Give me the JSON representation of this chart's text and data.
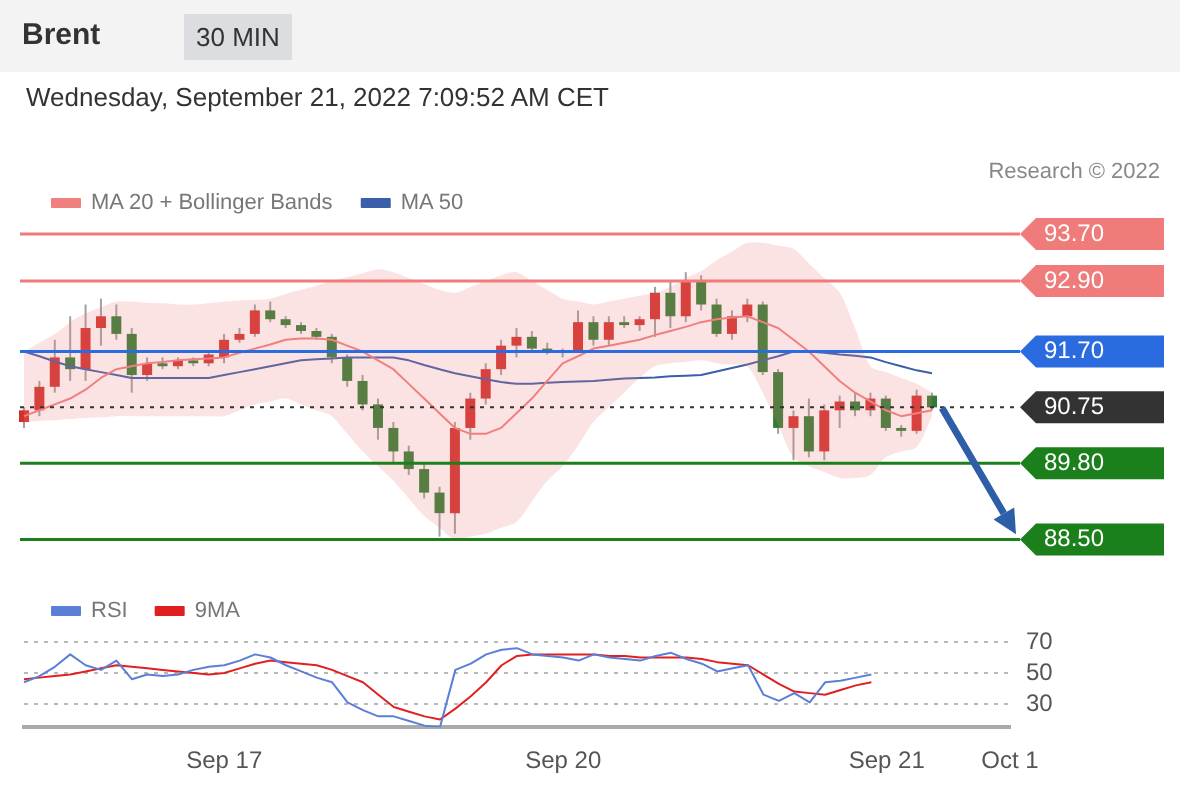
{
  "chart_data": [
    {
      "type": "candlestick",
      "title": "Brent",
      "subtitle": "Wednesday, September 21, 2022 7:09:52 AM CET",
      "annotations": [
        "30 MIN",
        "Research © 2022"
      ],
      "categories": [
        null,
        null,
        null,
        null,
        null,
        null,
        null,
        null,
        null,
        null,
        null,
        null,
        null,
        null,
        null,
        null,
        null,
        null,
        null,
        null,
        null,
        null,
        null,
        null,
        null,
        null,
        null,
        null,
        null,
        null,
        null,
        null,
        null,
        null,
        null,
        null,
        null,
        null,
        null,
        null,
        null,
        null,
        null,
        null,
        null,
        null,
        null,
        null,
        null,
        null,
        null,
        null,
        null,
        null,
        null,
        null,
        null,
        null,
        null,
        null
      ],
      "ohlc": [
        [
          90.5,
          90.75,
          90.4,
          90.7
        ],
        [
          90.7,
          91.2,
          90.6,
          91.1
        ],
        [
          91.1,
          91.9,
          91.0,
          91.6
        ],
        [
          91.6,
          92.3,
          91.2,
          91.4
        ],
        [
          91.4,
          92.5,
          91.2,
          92.1
        ],
        [
          92.1,
          92.6,
          91.8,
          92.3
        ],
        [
          92.3,
          92.5,
          91.9,
          92.0
        ],
        [
          92.0,
          92.1,
          91.0,
          91.3
        ],
        [
          91.3,
          91.6,
          91.2,
          91.5
        ],
        [
          91.5,
          91.6,
          91.4,
          91.45
        ],
        [
          91.45,
          91.6,
          91.4,
          91.55
        ],
        [
          91.55,
          91.6,
          91.45,
          91.5
        ],
        [
          91.5,
          91.7,
          91.45,
          91.65
        ],
        [
          91.6,
          92.0,
          91.5,
          91.9
        ],
        [
          91.9,
          92.1,
          91.85,
          92.0
        ],
        [
          92.0,
          92.5,
          91.95,
          92.4
        ],
        [
          92.4,
          92.55,
          92.2,
          92.25
        ],
        [
          92.25,
          92.3,
          92.1,
          92.15
        ],
        [
          92.15,
          92.2,
          92.0,
          92.05
        ],
        [
          92.05,
          92.1,
          91.9,
          91.95
        ],
        [
          91.95,
          92.0,
          91.5,
          91.6
        ],
        [
          91.6,
          91.65,
          91.1,
          91.2
        ],
        [
          91.2,
          91.3,
          90.7,
          90.8
        ],
        [
          90.8,
          90.9,
          90.2,
          90.4
        ],
        [
          90.4,
          90.5,
          89.8,
          90.0
        ],
        [
          90.0,
          90.1,
          89.6,
          89.7
        ],
        [
          89.7,
          89.8,
          89.2,
          89.3
        ],
        [
          89.3,
          89.4,
          88.55,
          88.95
        ],
        [
          88.95,
          90.5,
          88.6,
          90.4
        ],
        [
          90.4,
          91.0,
          90.2,
          90.9
        ],
        [
          90.9,
          91.5,
          90.8,
          91.4
        ],
        [
          91.4,
          91.9,
          91.3,
          91.8
        ],
        [
          91.8,
          92.1,
          91.6,
          91.95
        ],
        [
          91.95,
          92.05,
          91.7,
          91.75
        ],
        [
          91.75,
          91.85,
          91.65,
          91.7
        ],
        [
          91.7,
          91.75,
          91.6,
          91.72
        ],
        [
          91.72,
          92.4,
          91.7,
          92.2
        ],
        [
          92.2,
          92.3,
          91.8,
          91.9
        ],
        [
          91.9,
          92.3,
          91.8,
          92.2
        ],
        [
          92.2,
          92.3,
          92.1,
          92.15
        ],
        [
          92.15,
          92.3,
          92.05,
          92.25
        ],
        [
          92.25,
          92.8,
          91.95,
          92.7
        ],
        [
          92.7,
          92.9,
          92.1,
          92.3
        ],
        [
          92.3,
          93.05,
          92.2,
          92.9
        ],
        [
          92.9,
          93.0,
          92.4,
          92.5
        ],
        [
          92.5,
          92.6,
          91.95,
          92.0
        ],
        [
          92.0,
          92.4,
          91.9,
          92.3
        ],
        [
          92.3,
          92.6,
          92.2,
          92.5
        ],
        [
          92.5,
          92.55,
          91.3,
          91.35
        ],
        [
          91.35,
          91.4,
          90.3,
          90.4
        ],
        [
          90.4,
          90.7,
          89.85,
          90.6
        ],
        [
          90.6,
          90.9,
          89.9,
          90.0
        ],
        [
          90.0,
          90.8,
          89.85,
          90.7
        ],
        [
          90.7,
          90.95,
          90.4,
          90.85
        ],
        [
          90.85,
          91.0,
          90.6,
          90.7
        ],
        [
          90.7,
          91.0,
          90.6,
          90.9
        ],
        [
          90.9,
          90.95,
          90.35,
          90.4
        ],
        [
          90.4,
          90.45,
          90.25,
          90.35
        ],
        [
          90.35,
          91.05,
          90.3,
          90.95
        ],
        [
          90.95,
          91.0,
          90.7,
          90.75
        ]
      ],
      "series": [
        {
          "name": "MA 20 + Bollinger Bands",
          "type": "line",
          "color": "#f08080",
          "values": [
            90.6,
            90.7,
            90.8,
            90.9,
            91.05,
            91.25,
            91.4,
            91.45,
            91.5,
            91.52,
            91.55,
            91.57,
            91.58,
            91.6,
            91.68,
            91.75,
            91.82,
            91.9,
            91.92,
            91.92,
            91.9,
            91.8,
            91.7,
            91.55,
            91.4,
            91.15,
            90.9,
            90.65,
            90.4,
            90.3,
            90.3,
            90.4,
            90.65,
            90.9,
            91.2,
            91.5,
            91.62,
            91.75,
            91.8,
            91.85,
            91.9,
            91.98,
            92.05,
            92.12,
            92.2,
            92.25,
            92.28,
            92.3,
            92.2,
            92.1,
            91.9,
            91.7,
            91.45,
            91.2,
            91.0,
            90.85,
            90.7,
            90.6,
            90.65,
            90.7
          ],
          "upper": [
            91.7,
            91.85,
            92.0,
            92.2,
            92.35,
            92.45,
            92.55,
            92.55,
            92.53,
            92.52,
            92.5,
            92.5,
            92.52,
            92.55,
            92.57,
            92.58,
            92.6,
            92.68,
            92.75,
            92.82,
            92.9,
            92.97,
            93.03,
            93.1,
            93.05,
            92.95,
            92.85,
            92.75,
            92.7,
            92.8,
            92.9,
            93.0,
            93.05,
            92.9,
            92.75,
            92.6,
            92.55,
            92.5,
            92.55,
            92.6,
            92.65,
            92.7,
            92.8,
            92.95,
            93.07,
            93.25,
            93.4,
            93.55,
            93.55,
            93.5,
            93.45,
            93.2,
            92.95,
            92.7,
            92.1,
            91.45,
            91.35,
            91.25,
            91.15,
            91.0
          ],
          "lower": [
            90.5,
            90.52,
            90.53,
            90.55,
            90.57,
            90.58,
            90.6,
            90.6,
            90.6,
            90.6,
            90.6,
            90.6,
            90.6,
            90.6,
            90.7,
            90.8,
            90.85,
            90.9,
            90.8,
            90.7,
            90.6,
            90.3,
            90.0,
            89.75,
            89.5,
            89.2,
            88.9,
            88.7,
            88.5,
            88.55,
            88.6,
            88.7,
            88.8,
            89.15,
            89.5,
            89.75,
            90.1,
            90.5,
            90.75,
            91.0,
            91.25,
            91.45,
            91.5,
            91.52,
            91.55,
            91.5,
            91.48,
            91.45,
            91.0,
            90.45,
            89.9,
            89.75,
            89.65,
            89.55,
            89.55,
            89.6,
            89.9,
            90.0,
            90.07,
            90.6
          ]
        },
        {
          "name": "MA 50",
          "type": "line",
          "color": "#3b5ea8",
          "values": [
            91.7,
            91.62,
            91.53,
            91.45,
            91.4,
            91.35,
            91.3,
            91.25,
            91.25,
            91.25,
            91.25,
            91.25,
            91.25,
            91.3,
            91.35,
            91.4,
            91.45,
            91.5,
            91.55,
            91.57,
            91.58,
            91.6,
            91.6,
            91.6,
            91.6,
            91.55,
            91.47,
            91.4,
            91.33,
            91.28,
            91.23,
            91.18,
            91.15,
            91.15,
            91.17,
            91.18,
            91.19,
            91.2,
            91.22,
            91.24,
            91.25,
            91.26,
            91.28,
            91.29,
            91.3,
            91.36,
            91.42,
            91.48,
            91.55,
            91.62,
            91.7,
            91.7,
            91.68,
            91.65,
            91.63,
            91.6,
            91.52,
            91.45,
            91.38,
            91.33
          ]
        }
      ],
      "ylim": [
        88.5,
        93.7
      ],
      "yticks": [
        {
          "value": 88.5,
          "label": "88.50"
        },
        {
          "value": 89.8,
          "label": "89.80"
        },
        {
          "value": 90.75,
          "label": "90.75"
        },
        {
          "value": 91.7,
          "label": "91.70"
        },
        {
          "value": 92.9,
          "label": "92.90"
        },
        {
          "value": 93.7,
          "label": "93.70"
        }
      ],
      "ref_lines": [
        {
          "axis": "y",
          "value": 93.7,
          "color": "#ef7b7b"
        },
        {
          "axis": "y",
          "value": 92.9,
          "color": "#ef7b7b"
        },
        {
          "axis": "y",
          "value": 91.7,
          "color": "#2a6be0"
        },
        {
          "axis": "y",
          "value": 90.75,
          "color": "#333333",
          "line_style": "dotted"
        },
        {
          "axis": "y",
          "value": 89.8,
          "color": "#1b7f1b"
        },
        {
          "axis": "y",
          "value": 88.5,
          "color": "#1b7f1b"
        }
      ],
      "legend": "top left",
      "tick_labels": "y",
      "marker": "none"
    },
    {
      "type": "line",
      "categories": [
        null,
        null,
        null,
        null,
        null,
        null,
        null,
        null,
        null,
        null,
        null,
        null,
        null,
        "Sep 17",
        null,
        null,
        null,
        null,
        null,
        null,
        null,
        null,
        null,
        null,
        null,
        null,
        null,
        null,
        null,
        null,
        null,
        null,
        null,
        null,
        null,
        "Sep 20",
        null,
        null,
        null,
        null,
        null,
        null,
        null,
        null,
        null,
        null,
        null,
        null,
        null,
        null,
        null,
        null,
        null,
        null,
        null,
        null,
        "Sep 21",
        null,
        null,
        null,
        null,
        null,
        null,
        null,
        "Oct 1"
      ],
      "series": [
        {
          "name": "RSI",
          "color": "#5b7fd6",
          "values": [
            44,
            48,
            54,
            62,
            55,
            52,
            58,
            46,
            49,
            48,
            49,
            52,
            54,
            55,
            58,
            62,
            60,
            55,
            51,
            47,
            44,
            31,
            26,
            22,
            22,
            19,
            16,
            15,
            52,
            56,
            62,
            65,
            66,
            62,
            61,
            60,
            58,
            62,
            60,
            59,
            58,
            61,
            63,
            59,
            56,
            51,
            53,
            55,
            36,
            32,
            37,
            31,
            44,
            45,
            47,
            49,
            null,
            null,
            null,
            null,
            null,
            null,
            null,
            null,
            null
          ]
        },
        {
          "name": "9MA",
          "color": "#e02020",
          "values": [
            46,
            47,
            48,
            49,
            51,
            53,
            55,
            54,
            53,
            52,
            51,
            50,
            49,
            50,
            53,
            56,
            58,
            57,
            56,
            55,
            52,
            48,
            44,
            36,
            28,
            25,
            22,
            20,
            27,
            35,
            44,
            55,
            61,
            62,
            62,
            62,
            62,
            62,
            61,
            61,
            60,
            60,
            60,
            60,
            59,
            57,
            56,
            55,
            49,
            43,
            38,
            37,
            36,
            39,
            42,
            44,
            null,
            null,
            null,
            null,
            null,
            null,
            null,
            null,
            null
          ]
        }
      ],
      "ylim": [
        15,
        70
      ],
      "yticks": [
        70,
        50,
        30
      ],
      "grid": "y",
      "legend": "top left",
      "marker": "none"
    }
  ]
}
